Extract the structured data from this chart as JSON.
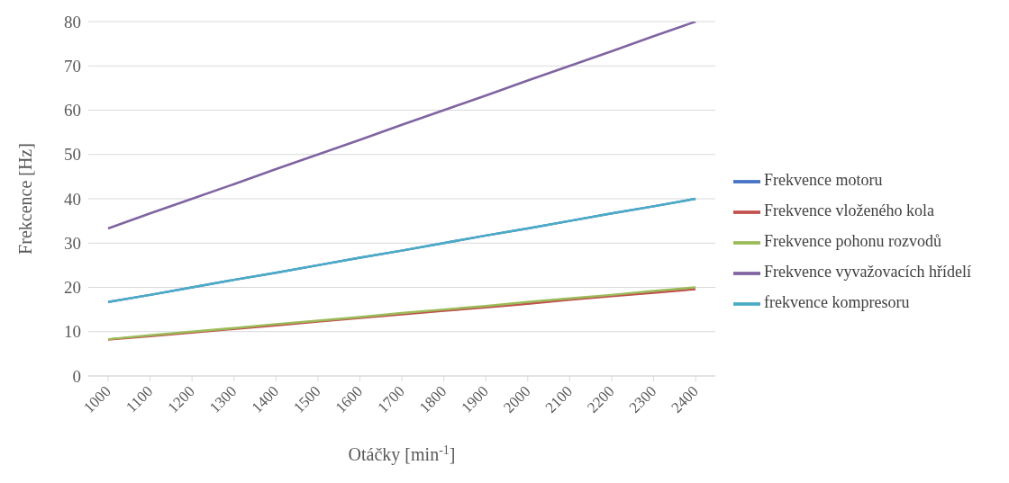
{
  "chart_data": {
    "type": "line",
    "xlabel": "Otáčky [min$^{-1}$]",
    "ylabel": "Frekcence [Hz]",
    "categories": [
      "1000",
      "1100",
      "1200",
      "1300",
      "1400",
      "1500",
      "1600",
      "1700",
      "1800",
      "1900",
      "2000",
      "2100",
      "2200",
      "2300",
      "2400"
    ],
    "series": [
      {
        "name": "Frekvence motoru",
        "color": "#4472c4",
        "values": [
          16.7,
          18.3,
          20,
          21.7,
          23.3,
          25,
          26.7,
          28.3,
          30,
          31.7,
          33.3,
          35,
          36.7,
          38.3,
          40
        ]
      },
      {
        "name": "Frekvence vloženého kola",
        "color": "#c0504d",
        "values": [
          8.2,
          9.0,
          9.8,
          10.6,
          11.4,
          12.3,
          13.1,
          13.9,
          14.7,
          15.5,
          16.3,
          17.2,
          18.0,
          18.8,
          19.6
        ]
      },
      {
        "name": "Frekvence pohonu rozvodů",
        "color": "#9bbb59",
        "values": [
          8.3,
          9.2,
          10,
          10.8,
          11.7,
          12.5,
          13.3,
          14.2,
          15,
          15.8,
          16.7,
          17.5,
          18.3,
          19.2,
          20
        ]
      },
      {
        "name": "Frekvence vyvažovacích hřídelí",
        "color": "#8064a2",
        "values": [
          33.3,
          36.7,
          40,
          43.3,
          46.7,
          50,
          53.3,
          56.7,
          60,
          63.3,
          66.7,
          70,
          73.3,
          76.7,
          80
        ]
      },
      {
        "name": "frekvence kompresoru",
        "color": "#4bacc6",
        "values": [
          16.7,
          18.3,
          20,
          21.7,
          23.3,
          25,
          26.7,
          28.3,
          30,
          31.7,
          33.3,
          35,
          36.7,
          38.3,
          40
        ]
      }
    ],
    "ylim": [
      0,
      80
    ],
    "yticks": [
      0,
      10,
      20,
      30,
      40,
      50,
      60,
      70,
      80
    ],
    "grid": "y",
    "legend": "right",
    "marker": "none",
    "line_style": "solid"
  }
}
